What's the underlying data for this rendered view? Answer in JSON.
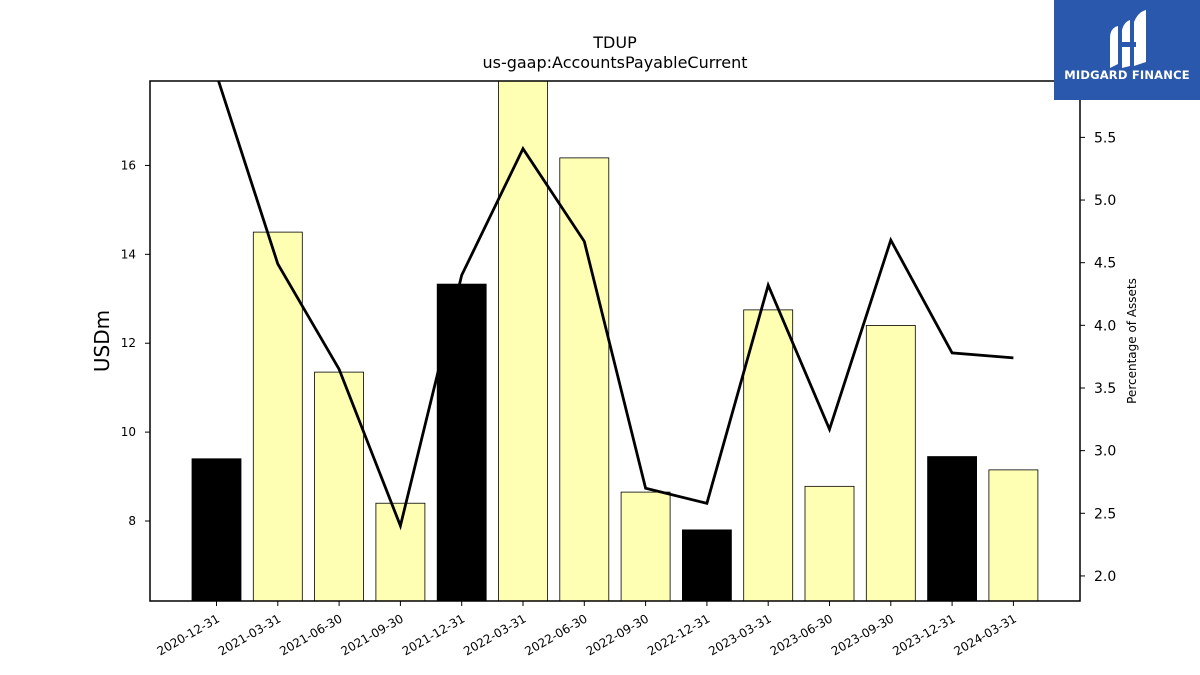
{
  "logo": {
    "text": "MIDGARD FINANCE",
    "background": "#2a58ad"
  },
  "chart_data": {
    "type": "bar",
    "title": "TDUP",
    "subtitle": "us-gaap:AccountsPayableCurrent",
    "ylabel": "USDm",
    "y2label": "Percentage of Assets",
    "categories": [
      "2020-12-31",
      "2021-03-31",
      "2021-06-30",
      "2021-09-30",
      "2021-12-31",
      "2022-03-31",
      "2022-06-30",
      "2022-09-30",
      "2022-12-31",
      "2023-03-31",
      "2023-06-30",
      "2023-09-30",
      "2023-12-31",
      "2024-03-31"
    ],
    "series": [
      {
        "type": "bar",
        "axis": "left",
        "values": [
          9.4,
          14.5,
          11.35,
          8.4,
          13.33,
          17.9,
          16.17,
          8.65,
          7.8,
          12.75,
          8.78,
          12.4,
          9.45,
          9.15
        ],
        "colors": [
          "#000000",
          "#ffffb3",
          "#ffffb3",
          "#ffffb3",
          "#000000",
          "#ffffb3",
          "#ffffb3",
          "#ffffb3",
          "#000000",
          "#ffffb3",
          "#ffffb3",
          "#ffffb3",
          "#000000",
          "#ffffb3"
        ]
      },
      {
        "type": "line",
        "axis": "right",
        "color": "#000000",
        "values": [
          6.0,
          4.49,
          3.65,
          2.4,
          4.4,
          5.41,
          4.67,
          2.7,
          2.58,
          4.32,
          3.17,
          4.68,
          3.78,
          3.74
        ]
      }
    ],
    "ylim": [
      6.2,
      17.9
    ],
    "y2lim": [
      1.8,
      5.95
    ],
    "yticks": [
      8,
      10,
      12,
      14,
      16
    ],
    "y2ticks": [
      2.0,
      2.5,
      3.0,
      3.5,
      4.0,
      4.5,
      5.0,
      5.5
    ],
    "grid": false,
    "legend": "none"
  }
}
